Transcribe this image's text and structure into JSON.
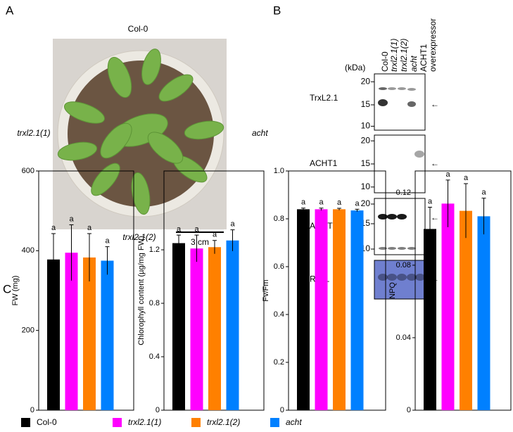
{
  "panel_a": {
    "letter": "A",
    "top": "Col-0",
    "left": "trxl2.1(1)",
    "right": "acht",
    "bottom": "trxl2.1(2)",
    "scale": "3 cm"
  },
  "panel_b": {
    "letter": "B",
    "kda": "(kDa)",
    "lanes": [
      "Col-0",
      "trxl2.1(1)",
      "trxl2.1(2)",
      "acht"
    ],
    "overexpressor": [
      "ACHT1",
      "overexpressor"
    ],
    "blots": [
      {
        "name": "TrxL2.1",
        "markers": [
          "20",
          "15",
          "10"
        ]
      },
      {
        "name": "ACHT1",
        "markers": [
          "20",
          "15",
          "10"
        ]
      },
      {
        "name": "ACHT2",
        "markers": [
          "20",
          "15",
          "10"
        ]
      },
      {
        "name": "RbcL"
      }
    ],
    "arrow": "←"
  },
  "panel_c": {
    "letter": "C"
  },
  "legend": [
    {
      "name": "Col-0",
      "color": "#000000"
    },
    {
      "name": "trxl2.1(1)",
      "color": "#ff00ff"
    },
    {
      "name": "trxl2.1(2)",
      "color": "#ff8000"
    },
    {
      "name": "acht",
      "color": "#0080ff"
    }
  ],
  "chart_data": [
    {
      "type": "bar",
      "ylabel": "FW (mg)",
      "values": [
        378,
        395,
        383,
        375
      ],
      "errors": [
        65,
        70,
        60,
        35
      ],
      "annotations": [
        "a",
        "a",
        "a",
        "a"
      ],
      "ylim": [
        0,
        600
      ],
      "yticks": [
        0,
        200,
        400,
        600
      ]
    },
    {
      "type": "bar",
      "ylabel": "Chlorophyll content (µg/mg FW)",
      "values": [
        1.25,
        1.21,
        1.22,
        1.27
      ],
      "errors": [
        0.06,
        0.1,
        0.05,
        0.08
      ],
      "annotations": [
        "a",
        "a",
        "a",
        "a"
      ],
      "ylim": [
        0,
        1.79
      ],
      "yticks": [
        0,
        0.4,
        0.8,
        1.2
      ]
    },
    {
      "type": "bar",
      "ylabel": "Fv/Fm",
      "values": [
        0.84,
        0.84,
        0.84,
        0.835
      ],
      "errors": [
        0.005,
        0.005,
        0.004,
        0.005
      ],
      "annotations": [
        "a",
        "a",
        "a",
        "a"
      ],
      "ylim": [
        0,
        1
      ],
      "yticks": [
        0,
        0.2,
        0.4,
        0.6,
        0.8,
        {
          "value": 1,
          "label": "1.0"
        }
      ]
    },
    {
      "type": "bar",
      "ylabel": "NPQ",
      "values": [
        0.1,
        0.114,
        0.11,
        0.107
      ],
      "errors": [
        0.012,
        0.013,
        0.015,
        0.01
      ],
      "annotations": [
        "a",
        "a",
        "a",
        "a"
      ],
      "ylim": [
        0,
        0.132
      ],
      "yticks": [
        0,
        0.04,
        0.08,
        0.12
      ]
    }
  ]
}
